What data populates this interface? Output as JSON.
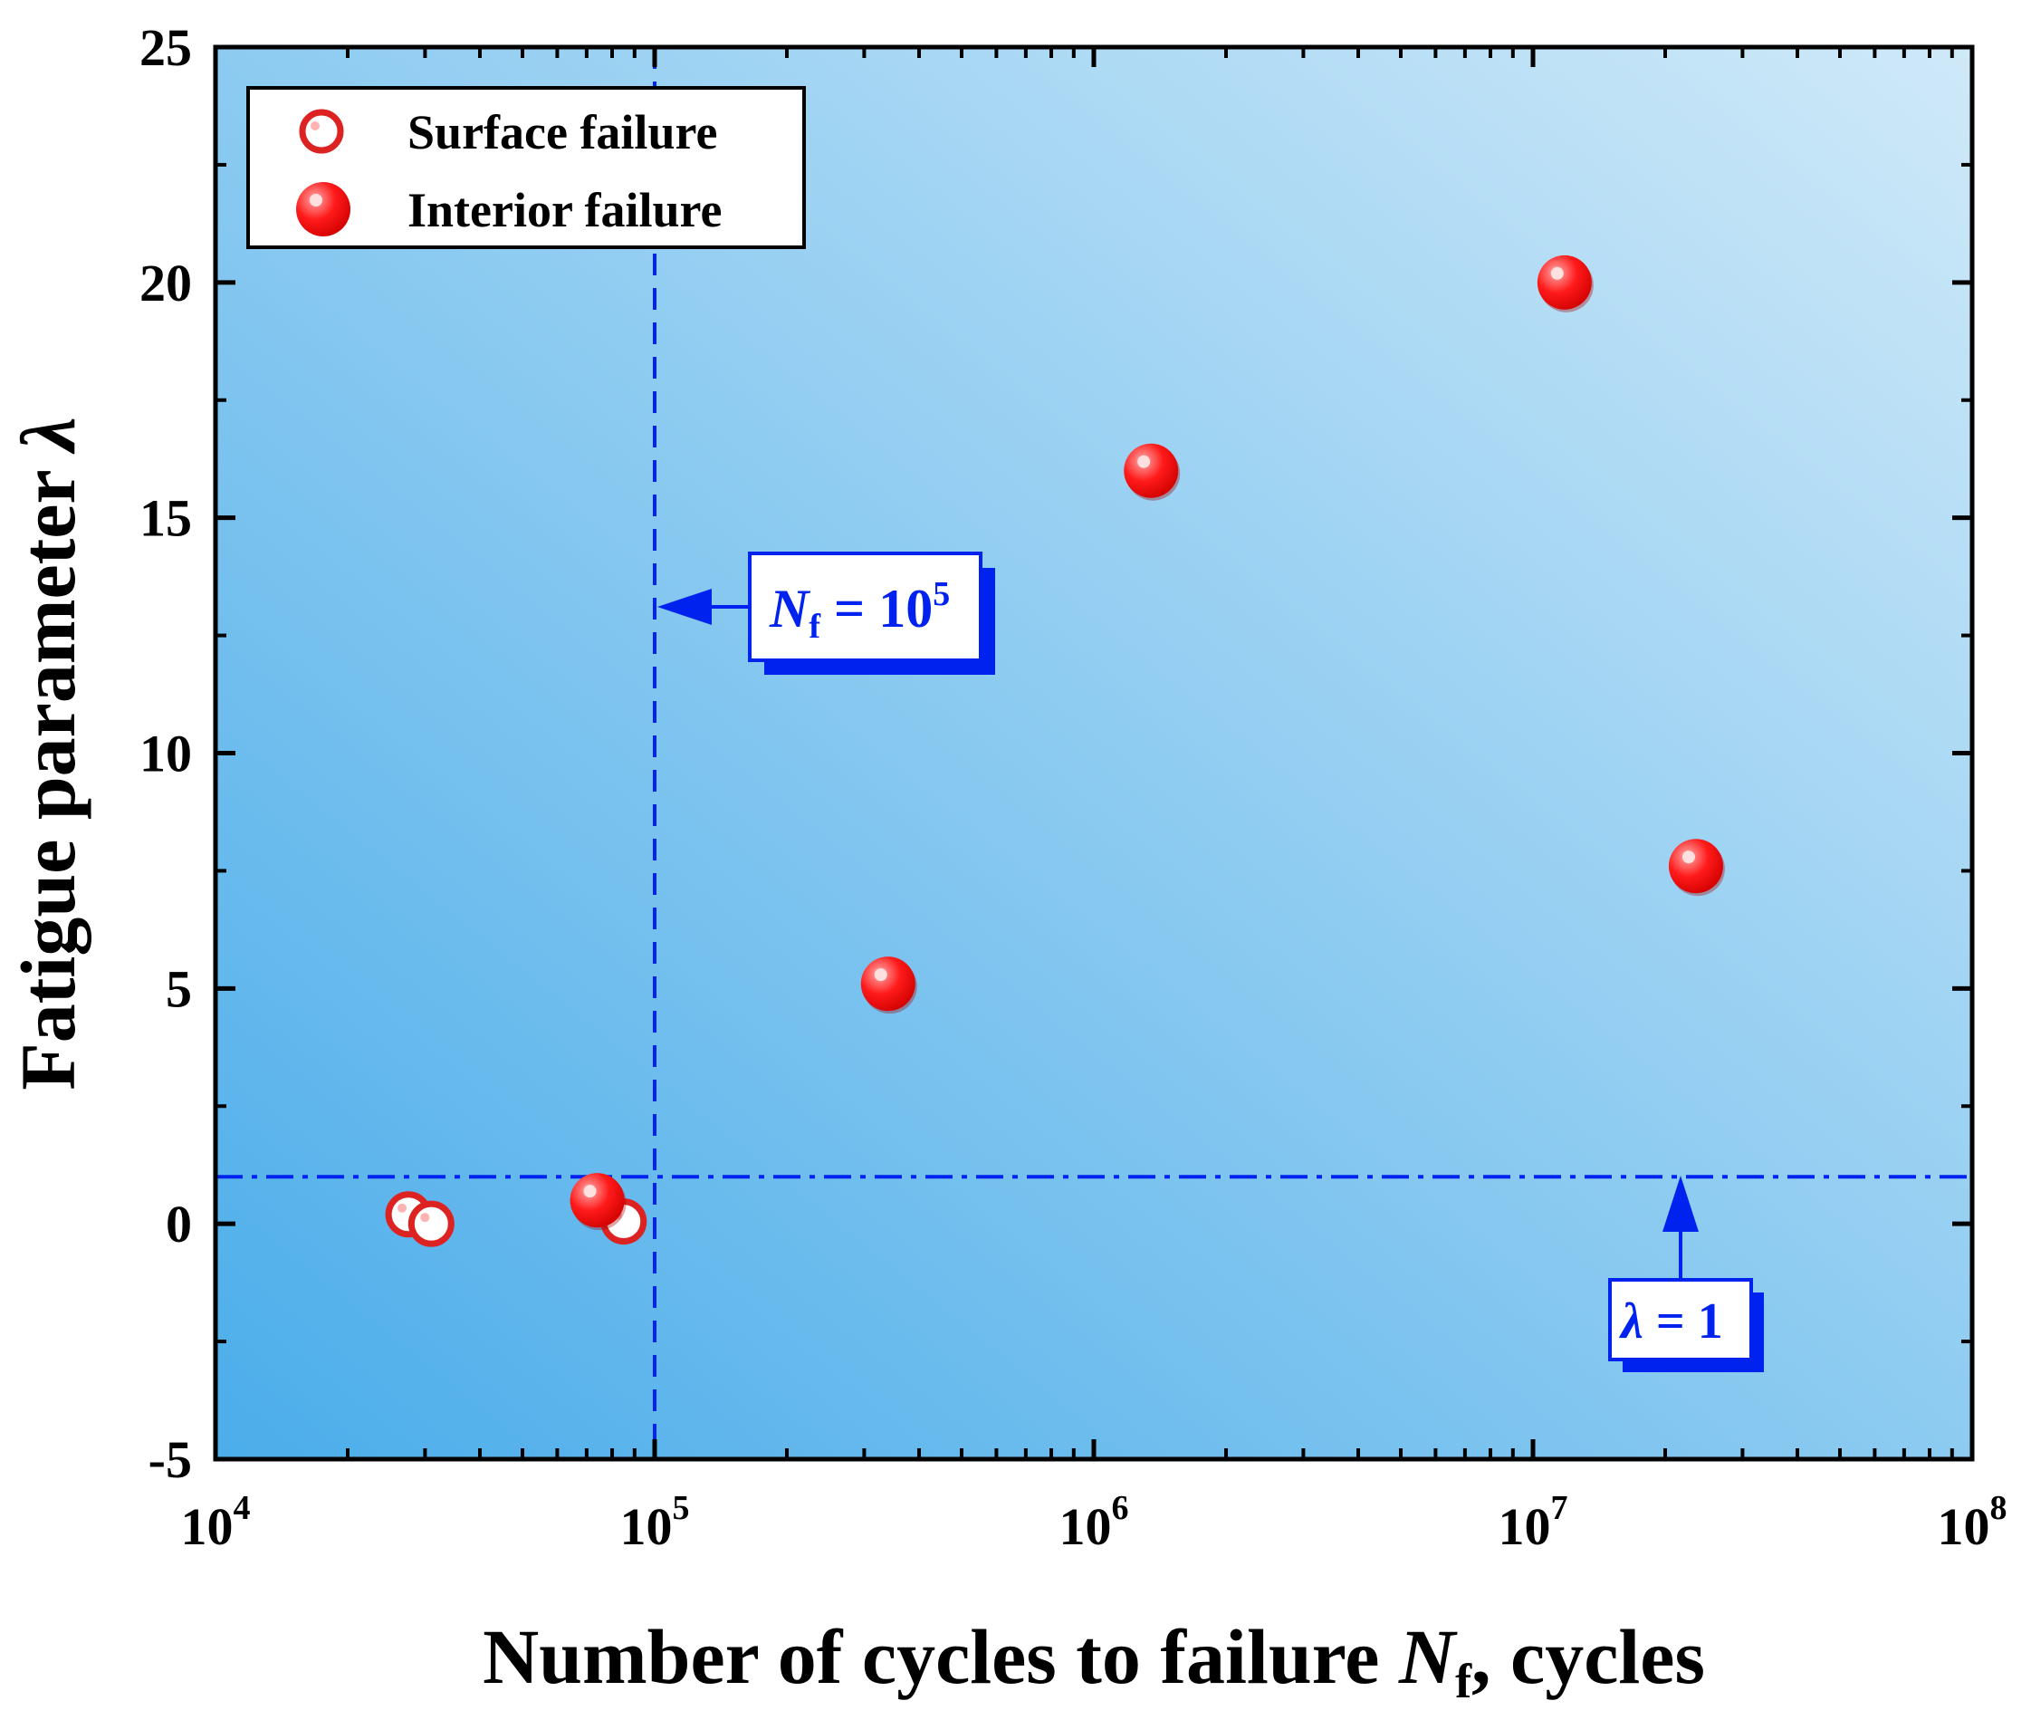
{
  "chart_data": {
    "type": "scatter",
    "title": "",
    "xlabel": "Number of cycles to failure ",
    "xlabel_var": "N",
    "xlabel_sub": "f",
    "xlabel_suffix": ", cycles",
    "ylabel": "Fatigue parameter ",
    "ylabel_var": "λ",
    "x_scale": "log",
    "xlim": [
      10000,
      100000000
    ],
    "ylim": [
      -5,
      25
    ],
    "x_ticks": [
      {
        "base": "10",
        "exp": "4"
      },
      {
        "base": "10",
        "exp": "5"
      },
      {
        "base": "10",
        "exp": "6"
      },
      {
        "base": "10",
        "exp": "7"
      },
      {
        "base": "10",
        "exp": "8"
      }
    ],
    "x_tick_values": [
      10000,
      100000,
      1000000,
      10000000,
      100000000
    ],
    "y_ticks": [
      "-5",
      "0",
      "5",
      "10",
      "15",
      "20",
      "25"
    ],
    "y_tick_values": [
      -5,
      0,
      5,
      10,
      15,
      20,
      25
    ],
    "grid": false,
    "legend_position": "top-left",
    "series": [
      {
        "name": "Surface failure",
        "marker": "hollow",
        "points": [
          {
            "x": 27500,
            "y": 0.2
          },
          {
            "x": 31000,
            "y": 0.0
          },
          {
            "x": 85000,
            "y": 0.05
          }
        ]
      },
      {
        "name": "Interior failure",
        "marker": "filled",
        "points": [
          {
            "x": 74000,
            "y": 0.5
          },
          {
            "x": 340000,
            "y": 5.1
          },
          {
            "x": 1350000,
            "y": 16.0
          },
          {
            "x": 11800000,
            "y": 20.0
          },
          {
            "x": 23500000,
            "y": 7.6
          }
        ]
      }
    ],
    "reference_lines": [
      {
        "orientation": "vertical",
        "value": 100000,
        "style": "dashed"
      },
      {
        "orientation": "horizontal",
        "value": 1,
        "style": "dash-dot"
      }
    ],
    "annotations": [
      {
        "name": "nf-annotation",
        "var": "N",
        "sub": "f",
        "eq": " = 10",
        "sup": "5"
      },
      {
        "name": "lambda-annotation",
        "var": "λ",
        "eq": " = 1"
      }
    ],
    "colors": {
      "marker_red": "#ff1a1a",
      "marker_edge": "#dd2222",
      "ref_line_blue": "#0022ee",
      "bg_light": "#c8e6f7",
      "bg_dark": "#4badea"
    }
  }
}
